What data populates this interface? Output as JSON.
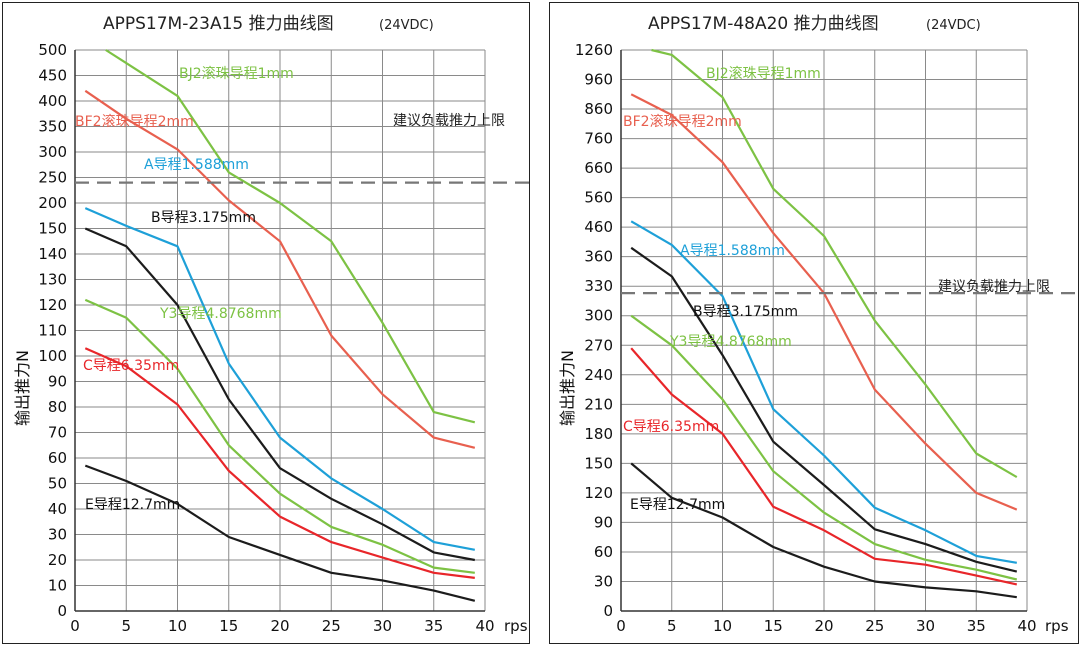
{
  "colors": {
    "bj2": "#7dc244",
    "bf2": "#e8604f",
    "a": "#1ea0d8",
    "b": "#1c1c1c",
    "y3": "#7dc244",
    "c": "#e8262a",
    "e": "#1c1c1c",
    "grid": "#8a8a8a",
    "limit": "#777777"
  },
  "chart_data": [
    {
      "type": "line",
      "title": "APPS17M-23A15  推力曲线图",
      "subtitle": "(24VDC)",
      "xlabel": "rps",
      "ylabel": "输出推力N",
      "x_ticks": [
        "0",
        "5",
        "10",
        "15",
        "20",
        "25",
        "30",
        "35",
        "40"
      ],
      "y_ticks": [
        "0",
        "10",
        "20",
        "30",
        "40",
        "50",
        "60",
        "70",
        "80",
        "90",
        "100",
        "110",
        "120",
        "130",
        "140",
        "150",
        "200",
        "250",
        "300",
        "350",
        "400",
        "450",
        "500"
      ],
      "xlim": [
        0,
        40
      ],
      "limit_line": {
        "label": "建议负载推力上限",
        "value": 240
      },
      "series": [
        {
          "name": "BJ2滚珠导程1mm",
          "color_key": "bj2",
          "x": [
            3,
            10,
            15,
            20,
            25,
            30,
            35,
            39
          ],
          "y": [
            500,
            410,
            260,
            200,
            145,
            113,
            78,
            74
          ]
        },
        {
          "name": "BF2滚珠导程2mm",
          "color_key": "bf2",
          "x": [
            1,
            5,
            10,
            15,
            20,
            25,
            30,
            35,
            39
          ],
          "y": [
            420,
            365,
            305,
            205,
            145,
            108,
            85,
            68,
            64
          ]
        },
        {
          "name": "A导程1.588mm",
          "color_key": "a",
          "x": [
            1,
            5,
            10,
            15,
            20,
            25,
            30,
            35,
            39
          ],
          "y": [
            190,
            155,
            143,
            97,
            68,
            52,
            40,
            27,
            24
          ]
        },
        {
          "name": "B导程3.175mm",
          "color_key": "b",
          "x": [
            1,
            5,
            10,
            15,
            20,
            25,
            30,
            35,
            39
          ],
          "y": [
            150,
            143,
            120,
            83,
            56,
            44,
            34,
            23,
            20
          ]
        },
        {
          "name": "Y3导程4.8768mm",
          "color_key": "y3",
          "x": [
            1,
            5,
            10,
            15,
            20,
            25,
            30,
            35,
            39
          ],
          "y": [
            122,
            115,
            95,
            65,
            46,
            33,
            26,
            17,
            15
          ]
        },
        {
          "name": "C导程6.35mm",
          "color_key": "c",
          "x": [
            1,
            5,
            10,
            15,
            20,
            25,
            30,
            35,
            39
          ],
          "y": [
            103,
            96,
            81,
            55,
            37,
            27,
            21,
            15,
            13
          ]
        },
        {
          "name": "E导程12.7mm",
          "color_key": "e",
          "x": [
            1,
            5,
            10,
            15,
            20,
            25,
            30,
            35,
            39
          ],
          "y": [
            57,
            51,
            42,
            29,
            22,
            15,
            12,
            8,
            4
          ]
        }
      ]
    },
    {
      "type": "line",
      "title": "APPS17M-48A20  推力曲线图",
      "subtitle": "(24VDC)",
      "xlabel": "rps",
      "ylabel": "输出推力N",
      "x_ticks": [
        "0",
        "5",
        "10",
        "15",
        "20",
        "25",
        "30",
        "35",
        "40"
      ],
      "y_ticks": [
        "0",
        "30",
        "60",
        "90",
        "120",
        "150",
        "180",
        "210",
        "240",
        "270",
        "300",
        "330",
        "360",
        "460",
        "560",
        "660",
        "760",
        "860",
        "960",
        "1260"
      ],
      "xlim": [
        0,
        40
      ],
      "limit_line": {
        "label": "建议负载推力上限",
        "value": 323
      },
      "series": [
        {
          "name": "BJ2滚珠导程1mm",
          "color_key": "bj2",
          "x": [
            3,
            5,
            10,
            15,
            20,
            25,
            30,
            35,
            39
          ],
          "y": [
            1260,
            1210,
            900,
            590,
            430,
            295,
            230,
            160,
            136
          ]
        },
        {
          "name": "BF2滚珠导程2mm",
          "color_key": "bf2",
          "x": [
            1,
            5,
            10,
            15,
            20,
            25,
            30,
            35,
            39
          ],
          "y": [
            910,
            840,
            680,
            440,
            323,
            225,
            170,
            120,
            103
          ]
        },
        {
          "name": "A导程1.588mm",
          "color_key": "a",
          "x": [
            1,
            5,
            10,
            15,
            20,
            25,
            30,
            35,
            39
          ],
          "y": [
            480,
            400,
            320,
            205,
            158,
            105,
            82,
            56,
            49
          ]
        },
        {
          "name": "B导程3.175mm",
          "color_key": "b",
          "x": [
            1,
            5,
            10,
            15,
            20,
            25,
            30,
            35,
            39
          ],
          "y": [
            390,
            340,
            260,
            172,
            128,
            83,
            68,
            50,
            40
          ]
        },
        {
          "name": "Y3导程4.8768mm",
          "color_key": "y3",
          "x": [
            1,
            5,
            10,
            15,
            20,
            25,
            30,
            35,
            39
          ],
          "y": [
            300,
            270,
            215,
            142,
            100,
            68,
            52,
            42,
            32
          ]
        },
        {
          "name": "C导程6.35mm",
          "color_key": "c",
          "x": [
            1,
            5,
            10,
            15,
            20,
            25,
            30,
            35,
            39
          ],
          "y": [
            267,
            220,
            180,
            106,
            82,
            53,
            47,
            36,
            27
          ]
        },
        {
          "name": "E导程12.7mm",
          "color_key": "e",
          "x": [
            1,
            5,
            10,
            15,
            20,
            25,
            30,
            35,
            39
          ],
          "y": [
            150,
            115,
            95,
            65,
            45,
            30,
            24,
            20,
            14
          ]
        }
      ]
    }
  ]
}
